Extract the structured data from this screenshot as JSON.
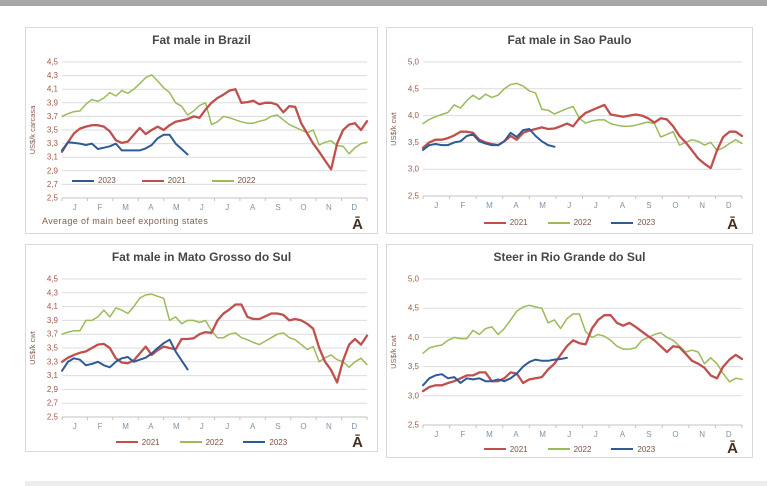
{
  "locale": {
    "decimal_separator": ","
  },
  "colors": {
    "top_bar": "#a6a6a6",
    "bottom_bar": "#ededed",
    "panel_border": "#d9d9d9",
    "title_text": "#474747",
    "tick_text": "#9e5a46",
    "month_text": "#7d93ac",
    "axis_title_text": "#8a5f4e",
    "legend_text": "#7a5242",
    "caption_text": "#80604f",
    "watermark_text": "#44301f",
    "grid": "#dcdcdc",
    "axis": "#c3c3c3",
    "red2021": "#C0504D",
    "green2022": "#9BBB59",
    "blue2023": "#2F5B94"
  },
  "chart_data": [
    {
      "type": "line",
      "title": "Fat male in Brazil",
      "ylabel": "US$/k carcasa",
      "ylim": [
        2.5,
        4.5
      ],
      "ystep": 0.2,
      "weeks": 52,
      "categories": [
        "J",
        "F",
        "M",
        "A",
        "M",
        "J",
        "J",
        "A",
        "S",
        "O",
        "N",
        "D"
      ],
      "legend": {
        "position": "inside",
        "order": [
          "2023",
          "2021",
          "2022"
        ]
      },
      "caption": "Average  of main  beef  exporting  states",
      "watermark": "Ā",
      "series": [
        {
          "name": "2021",
          "color_key": "red2021",
          "values": [
            3.18,
            3.32,
            3.45,
            3.52,
            3.55,
            3.57,
            3.57,
            3.55,
            3.48,
            3.35,
            3.31,
            3.33,
            3.43,
            3.53,
            3.44,
            3.5,
            3.55,
            3.5,
            3.57,
            3.62,
            3.64,
            3.66,
            3.7,
            3.68,
            3.8,
            3.9,
            3.97,
            4.02,
            4.08,
            4.1,
            3.9,
            3.91,
            3.93,
            3.88,
            3.9,
            3.9,
            3.87,
            3.76,
            3.85,
            3.84,
            3.6,
            3.45,
            3.3,
            3.18,
            3.05,
            2.92,
            3.3,
            3.5,
            3.58,
            3.6,
            3.5,
            3.63
          ]
        },
        {
          "name": "2022",
          "color_key": "green2022",
          "values": [
            3.7,
            3.74,
            3.77,
            3.78,
            3.88,
            3.95,
            3.92,
            3.97,
            4.05,
            4.0,
            4.08,
            4.04,
            4.1,
            4.18,
            4.27,
            4.31,
            4.22,
            4.12,
            4.05,
            3.9,
            3.85,
            3.72,
            3.78,
            3.86,
            3.9,
            3.58,
            3.62,
            3.7,
            3.68,
            3.65,
            3.62,
            3.6,
            3.6,
            3.63,
            3.65,
            3.7,
            3.72,
            3.65,
            3.58,
            3.54,
            3.5,
            3.46,
            3.5,
            3.28,
            3.32,
            3.34,
            3.27,
            3.26,
            3.15,
            3.24,
            3.3,
            3.32
          ]
        },
        {
          "name": "2023",
          "color_key": "blue2023",
          "values": [
            3.2,
            3.32,
            3.31,
            3.3,
            3.28,
            3.3,
            3.22,
            3.24,
            3.26,
            3.3,
            3.2,
            3.2,
            3.2,
            3.2,
            3.23,
            3.28,
            3.38,
            3.43,
            3.43,
            3.3,
            3.22,
            3.14
          ]
        }
      ]
    },
    {
      "type": "line",
      "title": "Fat male in Sao Paulo",
      "ylabel": "US$/k cwt",
      "ylim": [
        2.5,
        5.0
      ],
      "ystep": 0.5,
      "weeks": 52,
      "categories": [
        "J",
        "F",
        "M",
        "A",
        "M",
        "J",
        "J",
        "A",
        "S",
        "O",
        "N",
        "D"
      ],
      "legend": {
        "position": "below",
        "order": [
          "2021",
          "2022",
          "2023"
        ]
      },
      "watermark": "Ā",
      "series": [
        {
          "name": "2021",
          "color_key": "red2021",
          "values": [
            3.4,
            3.5,
            3.55,
            3.55,
            3.58,
            3.63,
            3.7,
            3.7,
            3.68,
            3.55,
            3.5,
            3.47,
            3.45,
            3.52,
            3.62,
            3.55,
            3.68,
            3.72,
            3.75,
            3.78,
            3.75,
            3.76,
            3.8,
            3.85,
            3.8,
            3.95,
            4.05,
            4.1,
            4.15,
            4.2,
            4.02,
            4.0,
            3.98,
            4.0,
            4.02,
            4.0,
            3.95,
            3.87,
            3.95,
            3.93,
            3.8,
            3.62,
            3.5,
            3.35,
            3.2,
            3.1,
            3.02,
            3.35,
            3.6,
            3.7,
            3.7,
            3.62
          ]
        },
        {
          "name": "2022",
          "color_key": "green2022",
          "values": [
            3.85,
            3.93,
            3.98,
            4.02,
            4.06,
            4.2,
            4.14,
            4.28,
            4.38,
            4.3,
            4.4,
            4.34,
            4.38,
            4.5,
            4.58,
            4.6,
            4.55,
            4.46,
            4.42,
            4.12,
            4.1,
            4.03,
            4.08,
            4.13,
            4.17,
            3.95,
            3.86,
            3.9,
            3.92,
            3.92,
            3.85,
            3.82,
            3.8,
            3.8,
            3.82,
            3.85,
            3.88,
            3.85,
            3.6,
            3.65,
            3.7,
            3.45,
            3.5,
            3.55,
            3.52,
            3.45,
            3.5,
            3.35,
            3.4,
            3.48,
            3.55,
            3.48
          ]
        },
        {
          "name": "2023",
          "color_key": "blue2023",
          "values": [
            3.36,
            3.45,
            3.47,
            3.45,
            3.45,
            3.5,
            3.52,
            3.62,
            3.65,
            3.52,
            3.48,
            3.45,
            3.45,
            3.52,
            3.68,
            3.6,
            3.73,
            3.75,
            3.62,
            3.52,
            3.45,
            3.42
          ]
        }
      ]
    },
    {
      "type": "line",
      "title": "Fat male in Mato Grosso do Sul",
      "ylabel": "US$/k cwt",
      "ylim": [
        2.5,
        4.5
      ],
      "ystep": 0.2,
      "weeks": 52,
      "categories": [
        "J",
        "F",
        "M",
        "A",
        "M",
        "J",
        "J",
        "A",
        "S",
        "O",
        "N",
        "D"
      ],
      "legend": {
        "position": "below",
        "order": [
          "2021",
          "2022",
          "2023"
        ]
      },
      "watermark": "Ā",
      "series": [
        {
          "name": "2021",
          "color_key": "red2021",
          "values": [
            3.3,
            3.36,
            3.4,
            3.43,
            3.45,
            3.5,
            3.55,
            3.56,
            3.5,
            3.35,
            3.29,
            3.28,
            3.32,
            3.42,
            3.52,
            3.4,
            3.47,
            3.52,
            3.5,
            3.48,
            3.63,
            3.63,
            3.64,
            3.7,
            3.73,
            3.72,
            3.9,
            4.0,
            4.06,
            4.13,
            4.13,
            3.95,
            3.92,
            3.92,
            3.96,
            4.0,
            4.0,
            3.98,
            3.9,
            3.92,
            3.9,
            3.85,
            3.78,
            3.5,
            3.3,
            3.18,
            3.0,
            3.32,
            3.55,
            3.63,
            3.55,
            3.68
          ]
        },
        {
          "name": "2022",
          "color_key": "green2022",
          "values": [
            3.7,
            3.73,
            3.75,
            3.75,
            3.9,
            3.9,
            3.95,
            4.05,
            3.95,
            4.08,
            4.05,
            4.0,
            4.1,
            4.22,
            4.27,
            4.28,
            4.25,
            4.22,
            3.9,
            3.95,
            3.85,
            3.9,
            3.9,
            3.87,
            3.9,
            3.75,
            3.65,
            3.65,
            3.7,
            3.72,
            3.65,
            3.62,
            3.58,
            3.55,
            3.6,
            3.65,
            3.7,
            3.72,
            3.65,
            3.62,
            3.55,
            3.48,
            3.52,
            3.3,
            3.36,
            3.4,
            3.33,
            3.3,
            3.22,
            3.3,
            3.35,
            3.26
          ]
        },
        {
          "name": "2023",
          "color_key": "blue2023",
          "values": [
            3.17,
            3.3,
            3.35,
            3.33,
            3.25,
            3.27,
            3.3,
            3.25,
            3.22,
            3.3,
            3.35,
            3.37,
            3.3,
            3.33,
            3.36,
            3.42,
            3.5,
            3.57,
            3.62,
            3.45,
            3.32,
            3.19
          ]
        }
      ]
    },
    {
      "type": "line",
      "title": "Steer  in Rio Grande do Sul",
      "ylabel": "US$/k cwt",
      "ylim": [
        2.5,
        5.0
      ],
      "ystep": 0.5,
      "weeks": 52,
      "categories": [
        "J",
        "F",
        "M",
        "A",
        "M",
        "J",
        "J",
        "A",
        "S",
        "O",
        "N",
        "D"
      ],
      "legend": {
        "position": "below",
        "order": [
          "2021",
          "2022",
          "2023"
        ]
      },
      "watermark": "Ā",
      "series": [
        {
          "name": "2021",
          "color_key": "red2021",
          "values": [
            3.08,
            3.15,
            3.18,
            3.18,
            3.22,
            3.25,
            3.3,
            3.35,
            3.35,
            3.4,
            3.4,
            3.25,
            3.25,
            3.3,
            3.4,
            3.38,
            3.22,
            3.28,
            3.3,
            3.32,
            3.45,
            3.55,
            3.7,
            3.85,
            3.95,
            3.9,
            3.88,
            4.15,
            4.3,
            4.38,
            4.38,
            4.25,
            4.2,
            4.25,
            4.18,
            4.1,
            4.02,
            3.95,
            3.85,
            3.75,
            3.85,
            3.83,
            3.72,
            3.6,
            3.55,
            3.48,
            3.35,
            3.3,
            3.5,
            3.62,
            3.7,
            3.63
          ]
        },
        {
          "name": "2022",
          "color_key": "green2022",
          "values": [
            3.73,
            3.82,
            3.85,
            3.87,
            3.95,
            4.0,
            3.98,
            3.98,
            4.12,
            4.05,
            4.15,
            4.18,
            4.05,
            4.15,
            4.3,
            4.45,
            4.52,
            4.55,
            4.52,
            4.5,
            4.25,
            4.3,
            4.15,
            4.32,
            4.4,
            4.4,
            4.1,
            4.0,
            4.05,
            4.02,
            3.95,
            3.85,
            3.8,
            3.8,
            3.82,
            3.95,
            4.0,
            4.05,
            4.08,
            4.0,
            3.95,
            3.85,
            3.75,
            3.78,
            3.75,
            3.55,
            3.65,
            3.55,
            3.38,
            3.24,
            3.3,
            3.28
          ]
        },
        {
          "name": "2023",
          "color_key": "blue2023",
          "values": [
            3.18,
            3.3,
            3.35,
            3.37,
            3.3,
            3.32,
            3.22,
            3.3,
            3.28,
            3.3,
            3.25,
            3.25,
            3.28,
            3.25,
            3.3,
            3.38,
            3.5,
            3.58,
            3.62,
            3.6,
            3.6,
            3.62,
            3.63,
            3.65
          ]
        }
      ]
    }
  ]
}
